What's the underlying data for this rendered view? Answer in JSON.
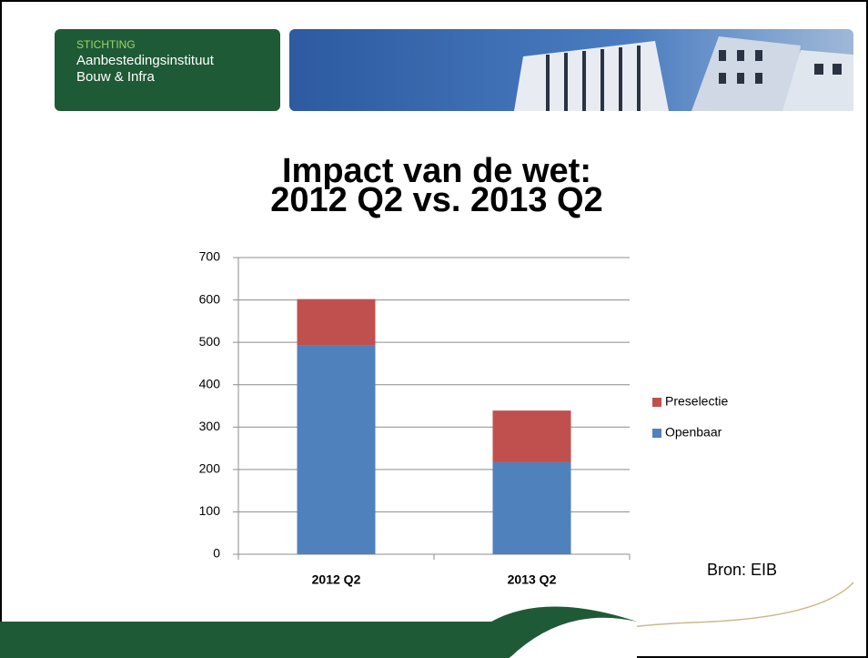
{
  "header": {
    "logo": [
      "STICHTING",
      "Aanbestedingsinstituut",
      "Bouw & Infra"
    ]
  },
  "chart_data": {
    "type": "stacked_bar",
    "title": "Impact van de wet:",
    "subtitle": "2012 Q2 vs. 2013 Q2",
    "categories": [
      "2012 Q2",
      "2013 Q2"
    ],
    "series": [
      {
        "name": "Openbaar",
        "color": "#4f81bd",
        "values": [
          492,
          217
        ]
      },
      {
        "name": "Preselectie",
        "color": "#c0504d",
        "values": [
          110,
          122
        ]
      }
    ],
    "ylim": [
      0,
      700
    ],
    "yticks": [
      0,
      100,
      200,
      300,
      400,
      500,
      600,
      700
    ],
    "grid": true,
    "legend": "right"
  },
  "source": "Bron: EIB"
}
